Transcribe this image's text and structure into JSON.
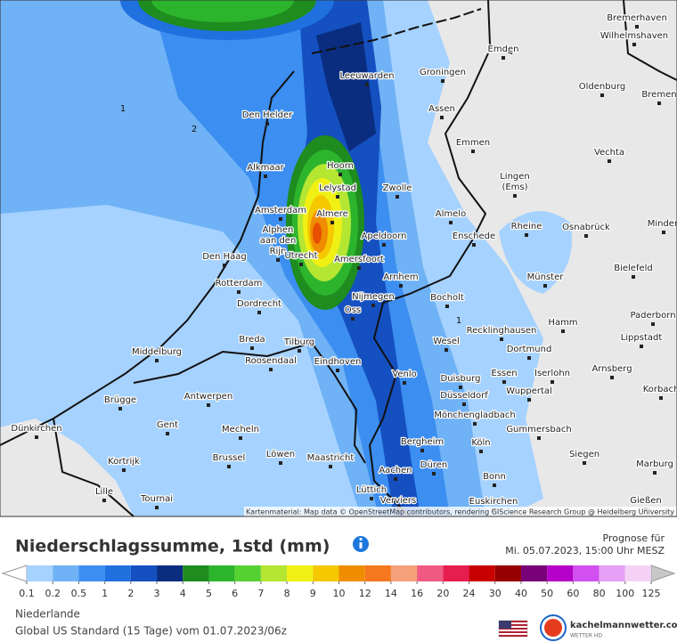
{
  "map": {
    "cities": [
      [
        "Bremerhaven"
      ],
      [
        "Wilhelmshaven"
      ],
      [
        "Emden"
      ],
      [
        "Leeuwarden"
      ],
      [
        "Groningen"
      ],
      [
        "Oldenburg"
      ],
      [
        "Bremen"
      ],
      [
        "Den Helder"
      ],
      [
        "Assen"
      ],
      [
        "Emmen"
      ],
      [
        "Vechta"
      ],
      [
        "Hoorn"
      ],
      [
        "Alkmaar"
      ],
      [
        "Lingen",
        "(Ems)"
      ],
      [
        "Lelystad"
      ],
      [
        "Zwolle"
      ],
      [
        "Amsterdam"
      ],
      [
        "Almere"
      ],
      [
        "Almelo"
      ],
      [
        "Alphen",
        "aan den",
        "Rijn"
      ],
      [
        "Rheine"
      ],
      [
        "Osnabrück"
      ],
      [
        "Minden"
      ],
      [
        "Apeldoorn"
      ],
      [
        "Enschede"
      ],
      [
        "Den Haag"
      ],
      [
        "Utrecht"
      ],
      [
        "Amersfoort"
      ],
      [
        "Bielefeld"
      ],
      [
        "Arnhem"
      ],
      [
        "Münster"
      ],
      [
        "Rotterdam"
      ],
      [
        "Nijmegen"
      ],
      [
        "Bocholt"
      ],
      [
        "Dordrecht"
      ],
      [
        "Oss"
      ],
      [
        "Paderborn"
      ],
      [
        "Hamm"
      ],
      [
        "Recklinghausen"
      ],
      [
        "Breda"
      ],
      [
        "Tilburg"
      ],
      [
        "Lippstadt"
      ],
      [
        "Wesel"
      ],
      [
        "Dortmund"
      ],
      [
        "Middelburg"
      ],
      [
        "Roosendaal"
      ],
      [
        "Eindhoven"
      ],
      [
        "Arnsberg"
      ],
      [
        "Venlo"
      ],
      [
        "Essen"
      ],
      [
        "Iserlohn"
      ],
      [
        "Duisburg"
      ],
      [
        "Korbach"
      ],
      [
        "Antwerpen"
      ],
      [
        "Wuppertal"
      ],
      [
        "Düsseldorf"
      ],
      [
        "Brügge"
      ],
      [
        "Mönchengladbach"
      ],
      [
        "Gent"
      ],
      [
        "Dünkirchen"
      ],
      [
        "Mecheln"
      ],
      [
        "Gummersbach"
      ],
      [
        "Bergheim"
      ],
      [
        "Köln"
      ],
      [
        "Löwen"
      ],
      [
        "Maastricht"
      ],
      [
        "Siegen"
      ],
      [
        "Brussel"
      ],
      [
        "Kortrijk"
      ],
      [
        "Düren"
      ],
      [
        "Marburg"
      ],
      [
        "Aachen"
      ],
      [
        "Bonn"
      ],
      [
        "Lüttich"
      ],
      [
        "Lille"
      ],
      [
        "Tournai"
      ],
      [
        "Verviers"
      ],
      [
        "Euskirchen"
      ],
      [
        "Gießen"
      ]
    ],
    "contour_labels": [
      1,
      2,
      1
    ],
    "attribution": "Kartenmaterial: Map data © OpenStreetMap contributors, rendering GIScience Research Group @ Heidelberg University"
  },
  "header": {
    "title": "Niederschlagssumme, 1std (mm)",
    "forecast_label": "Prognose für",
    "forecast_time": "Mi. 05.07.2023, 15:00 Uhr MESZ"
  },
  "legend": {
    "labels": [
      0.1,
      0.2,
      0.5,
      1,
      2,
      3,
      4,
      5,
      6,
      7,
      8,
      9,
      10,
      12,
      14,
      16,
      20,
      24,
      30,
      40,
      50,
      60,
      80,
      100,
      125
    ],
    "colors": [
      "#a6d2ff",
      "#6fb2f5",
      "#3c8ef0",
      "#2070e0",
      "#1450c0",
      "#0a2d80",
      "#1e8c1e",
      "#2db42d",
      "#55d232",
      "#b4e632",
      "#f0f014",
      "#f5c800",
      "#f08c00",
      "#f5781e",
      "#f5a078",
      "#f05a82",
      "#e61e50",
      "#c80000",
      "#960000",
      "#780078",
      "#b400c8",
      "#d250f0",
      "#e6a0f5",
      "#f5d2f5"
    ],
    "low_color": "#ffffff",
    "high_color": "#c8c8c8"
  },
  "footer": {
    "region": "Niederlande",
    "model": "Global US Standard (15 Tage) vom 01.07.2023/06z",
    "brand": "kachelmannwetter.com",
    "brand_sub": "WETTER HD"
  }
}
